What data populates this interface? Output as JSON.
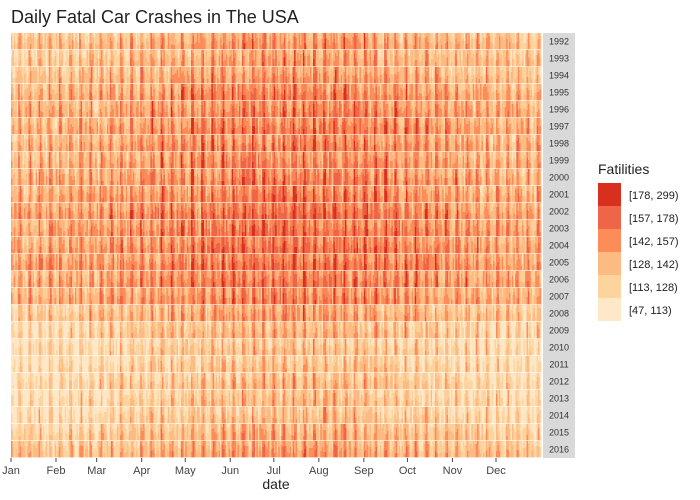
{
  "chart_data": {
    "type": "heatmap",
    "title": "Daily Fatal Car Crashes in The USA",
    "xlabel": "date",
    "ylabel": "",
    "x_ticks": [
      "Jan",
      "Feb",
      "Mar",
      "Apr",
      "May",
      "Jun",
      "Jul",
      "Aug",
      "Sep",
      "Oct",
      "Nov",
      "Dec"
    ],
    "years": [
      "1992",
      "1993",
      "1994",
      "1995",
      "1996",
      "1997",
      "1998",
      "1999",
      "2000",
      "2001",
      "2002",
      "2003",
      "2004",
      "2005",
      "2006",
      "2007",
      "2008",
      "2009",
      "2010",
      "2011",
      "2012",
      "2013",
      "2014",
      "2015",
      "2016"
    ],
    "year_level_estimate": [
      2.3,
      2.1,
      2.3,
      2.7,
      2.8,
      2.9,
      2.8,
      2.7,
      2.9,
      2.9,
      3.2,
      3.2,
      3.1,
      3.2,
      3.0,
      2.8,
      2.1,
      1.5,
      1.2,
      1.2,
      1.4,
      1.3,
      1.3,
      1.8,
      2.1
    ],
    "legend": {
      "title": "Fatilities",
      "position": "right",
      "bins": [
        {
          "label": "[178, 299)",
          "color": "#d7301f"
        },
        {
          "label": "[157, 178)",
          "color": "#ef6548"
        },
        {
          "label": "[142, 157)",
          "color": "#fc8d59"
        },
        {
          "label": "[128, 142)",
          "color": "#fdbb84"
        },
        {
          "label": "[113, 128)",
          "color": "#fdd49e"
        },
        {
          "label": "[47, 113)",
          "color": "#fee8c8"
        }
      ]
    },
    "grid": false
  }
}
